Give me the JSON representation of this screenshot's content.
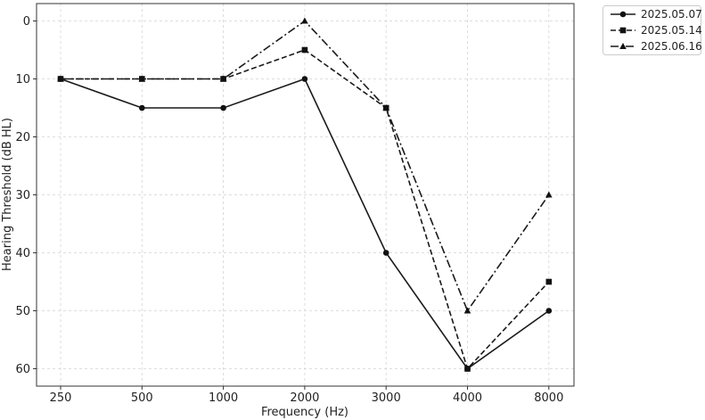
{
  "chart_data": {
    "type": "line",
    "xlabel": "Frequency (Hz)",
    "ylabel": "Hearing Threshold (dB HL)",
    "categories": [
      "250",
      "500",
      "1000",
      "2000",
      "3000",
      "4000",
      "8000"
    ],
    "y_ticks": [
      0,
      10,
      20,
      30,
      40,
      50,
      60
    ],
    "ylim": [
      63,
      -3
    ],
    "y_inverted": true,
    "grid": true,
    "legend_position": "outside top-right",
    "series": [
      {
        "name": "2025.05.07",
        "marker": "circle",
        "linestyle": "solid",
        "values": [
          10,
          15,
          15,
          10,
          40,
          60,
          50
        ]
      },
      {
        "name": "2025.05.14",
        "marker": "square",
        "linestyle": "dashed",
        "values": [
          10,
          10,
          10,
          5,
          15,
          60,
          45
        ]
      },
      {
        "name": "2025.06.16",
        "marker": "triangle",
        "linestyle": "dashdot",
        "values": [
          10,
          10,
          10,
          0,
          15,
          50,
          30
        ]
      }
    ]
  }
}
